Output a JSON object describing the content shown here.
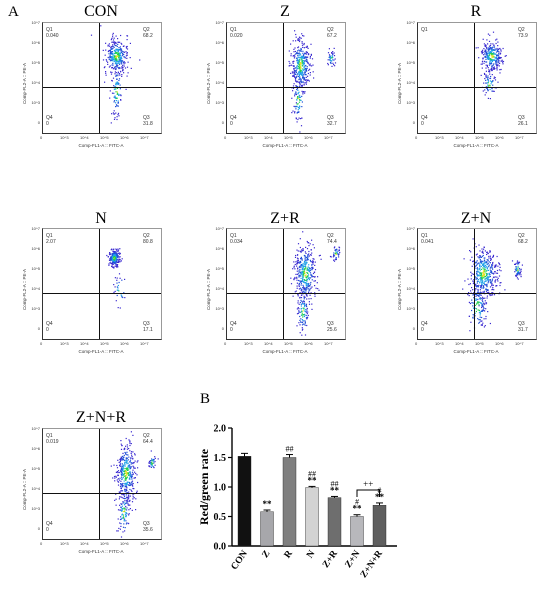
{
  "panel_a_label": "A",
  "panel_b_label": "B",
  "flow": {
    "y_axis_label": "Comp-FL2-A :: PE-A",
    "x_axis_label": "Comp-FL1-A :: FITC-A",
    "tick_labels": [
      "10^7",
      "10^6",
      "10^5",
      "10^4",
      "10^3",
      "0"
    ],
    "x_tick_labels": [
      "0",
      "10^3",
      "10^4",
      "10^5",
      "10^6",
      "10^7"
    ],
    "quadrant_names": [
      "Q1",
      "Q2",
      "Q3",
      "Q4"
    ],
    "plots": [
      {
        "title": "CON",
        "q1": "0.040",
        "q2": "68.2",
        "q3": "31.8",
        "q4": "0"
      },
      {
        "title": "Z",
        "q1": "0.020",
        "q2": "67.2",
        "q3": "32.7",
        "q4": "0"
      },
      {
        "title": "R",
        "q1": "",
        "q2": "73.9",
        "q3": "26.1",
        "q4": "0"
      },
      {
        "title": "N",
        "q1": "2.07",
        "q2": "80.8",
        "q3": "17.1",
        "q4": "0"
      },
      {
        "title": "Z+R",
        "q1": "0.034",
        "q2": "74.4",
        "q3": "25.6",
        "q4": "0"
      },
      {
        "title": "Z+N",
        "q1": "0.041",
        "q2": "68.2",
        "q3": "31.7",
        "q4": "0"
      },
      {
        "title": "Z+N+R",
        "q1": "0.019",
        "q2": "64.4",
        "q3": "35.6",
        "q4": "0"
      }
    ]
  },
  "chart_data": {
    "type": "bar",
    "categories": [
      "CON",
      "Z",
      "R",
      "N",
      "Z+R",
      "Z+N",
      "Z+N+R"
    ],
    "values": [
      1.52,
      0.58,
      1.5,
      0.99,
      0.82,
      0.5,
      0.69
    ],
    "errors": [
      0.05,
      0.03,
      0.05,
      0.02,
      0.02,
      0.03,
      0.04
    ],
    "bar_colors": [
      "#111111",
      "#a7a7ab",
      "#7f7f7f",
      "#d3d3d3",
      "#6e6e6e",
      "#b8b8bc",
      "#5f5f5f"
    ],
    "annotations_bottom": [
      "",
      "**",
      "",
      "**",
      "**",
      "**",
      "**"
    ],
    "annotations_top": [
      "",
      "",
      "##",
      "##",
      "##",
      "#",
      "#"
    ],
    "bracket": {
      "from": "Z+N",
      "to": "Z+N+R",
      "label": "++"
    },
    "ylabel": "Red/green rate",
    "ylim": [
      0.0,
      2.0
    ],
    "yticks": [
      "0.0",
      "0.5",
      "1.0",
      "1.5",
      "2.0"
    ]
  }
}
